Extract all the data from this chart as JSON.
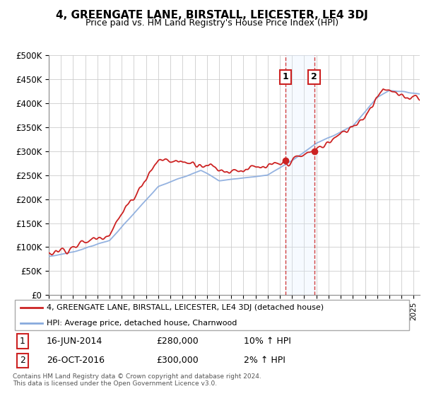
{
  "title": "4, GREENGATE LANE, BIRSTALL, LEICESTER, LE4 3DJ",
  "subtitle": "Price paid vs. HM Land Registry's House Price Index (HPI)",
  "ylim": [
    0,
    500000
  ],
  "yticks": [
    0,
    50000,
    100000,
    150000,
    200000,
    250000,
    300000,
    350000,
    400000,
    450000,
    500000
  ],
  "xlim_start": 1995.0,
  "xlim_end": 2025.5,
  "background_color": "#ffffff",
  "grid_color": "#cccccc",
  "sale1_x": 2014.46,
  "sale1_y": 280000,
  "sale2_x": 2016.82,
  "sale2_y": 300000,
  "sale1_date": "16-JUN-2014",
  "sale1_price": "£280,000",
  "sale1_hpi": "10% ↑ HPI",
  "sale2_date": "26-OCT-2016",
  "sale2_price": "£300,000",
  "sale2_hpi": "2% ↑ HPI",
  "legend_line1": "4, GREENGATE LANE, BIRSTALL, LEICESTER, LE4 3DJ (detached house)",
  "legend_line2": "HPI: Average price, detached house, Charnwood",
  "footer": "Contains HM Land Registry data © Crown copyright and database right 2024.\nThis data is licensed under the Open Government Licence v3.0.",
  "hpi_color": "#88aadd",
  "price_color": "#cc2222",
  "shade_color": "#ddeeff",
  "box_color": "#cc2222"
}
